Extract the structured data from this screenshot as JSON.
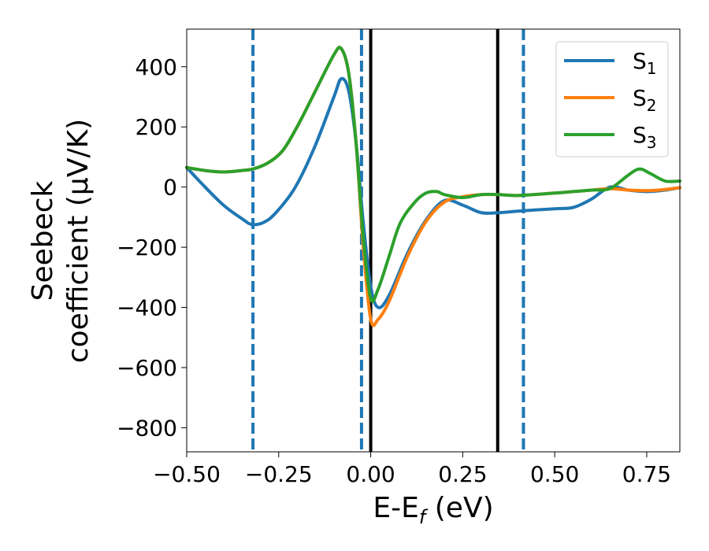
{
  "chart_data": {
    "type": "line",
    "xlabel": "E-E",
    "xlabel_sub": "f",
    "xlabel_unit": " (eV)",
    "ylabel_line1": "Seebeck",
    "ylabel_line2": "coefficient  (μV/K)",
    "xlim": [
      -0.5,
      0.84
    ],
    "ylim": [
      -880,
      525
    ],
    "xticks": [
      -0.5,
      -0.25,
      0.0,
      0.25,
      0.5,
      0.75
    ],
    "xtick_labels": [
      "−0.50",
      "−0.25",
      "0.00",
      "0.25",
      "0.50",
      "0.75"
    ],
    "yticks": [
      400,
      200,
      0,
      -200,
      -400,
      -600,
      -800
    ],
    "ytick_labels": [
      "400",
      "200",
      "0",
      "−200",
      "−400",
      "−600",
      "−800"
    ],
    "grid": false,
    "legend_position": "top-right",
    "vlines": [
      {
        "x": -0.32,
        "style": "dashed",
        "color": "#1f77b4"
      },
      {
        "x": -0.025,
        "style": "dashed",
        "color": "#1f77b4"
      },
      {
        "x": 0.0,
        "style": "solid",
        "color": "#000000"
      },
      {
        "x": 0.345,
        "style": "solid",
        "color": "#000000"
      },
      {
        "x": 0.415,
        "style": "dashed",
        "color": "#1f77b4"
      }
    ],
    "series": [
      {
        "name": "S",
        "sub": "1",
        "color": "#1f77b4",
        "x": [
          -0.5,
          -0.45,
          -0.4,
          -0.35,
          -0.32,
          -0.28,
          -0.24,
          -0.2,
          -0.15,
          -0.1,
          -0.08,
          -0.06,
          -0.04,
          -0.02,
          0.0,
          0.02,
          0.05,
          0.1,
          0.15,
          0.2,
          0.25,
          0.3,
          0.35,
          0.4,
          0.5,
          0.55,
          0.6,
          0.65,
          0.7,
          0.75,
          0.8,
          0.84
        ],
        "values": [
          65,
          0,
          -60,
          -105,
          -125,
          -110,
          -60,
          10,
          140,
          300,
          360,
          320,
          150,
          -120,
          -330,
          -400,
          -360,
          -220,
          -110,
          -45,
          -60,
          -85,
          -85,
          -80,
          -72,
          -68,
          -40,
          0,
          -10,
          -15,
          -10,
          -2
        ]
      },
      {
        "name": "S",
        "sub": "2",
        "color": "#ff7f0e",
        "x": [
          -0.5,
          -0.45,
          -0.4,
          -0.35,
          -0.32,
          -0.28,
          -0.24,
          -0.2,
          -0.15,
          -0.1,
          -0.08,
          -0.06,
          -0.04,
          -0.02,
          0.0,
          0.02,
          0.05,
          0.1,
          0.15,
          0.2,
          0.25,
          0.3,
          0.35,
          0.4,
          0.5,
          0.55,
          0.6,
          0.65,
          0.7,
          0.75,
          0.8,
          0.84
        ],
        "values": [
          65,
          55,
          50,
          55,
          60,
          80,
          120,
          200,
          320,
          440,
          460,
          380,
          150,
          -200,
          -440,
          -440,
          -380,
          -230,
          -115,
          -50,
          -32,
          -25,
          -25,
          -28,
          -20,
          -15,
          -10,
          -5,
          -10,
          -12,
          -8,
          -2
        ]
      },
      {
        "name": "S",
        "sub": "3",
        "color": "#2ca02c",
        "x": [
          -0.5,
          -0.45,
          -0.4,
          -0.35,
          -0.32,
          -0.28,
          -0.24,
          -0.2,
          -0.15,
          -0.1,
          -0.08,
          -0.06,
          -0.04,
          -0.02,
          0.0,
          0.02,
          0.05,
          0.08,
          0.12,
          0.15,
          0.18,
          0.2,
          0.25,
          0.3,
          0.35,
          0.4,
          0.5,
          0.55,
          0.6,
          0.65,
          0.7,
          0.73,
          0.76,
          0.8,
          0.84
        ],
        "values": [
          65,
          55,
          50,
          55,
          60,
          80,
          120,
          200,
          320,
          440,
          460,
          380,
          150,
          -170,
          -370,
          -340,
          -230,
          -120,
          -50,
          -20,
          -15,
          -25,
          -35,
          -25,
          -25,
          -28,
          -20,
          -15,
          -10,
          -5,
          40,
          60,
          45,
          20,
          20
        ]
      }
    ]
  }
}
